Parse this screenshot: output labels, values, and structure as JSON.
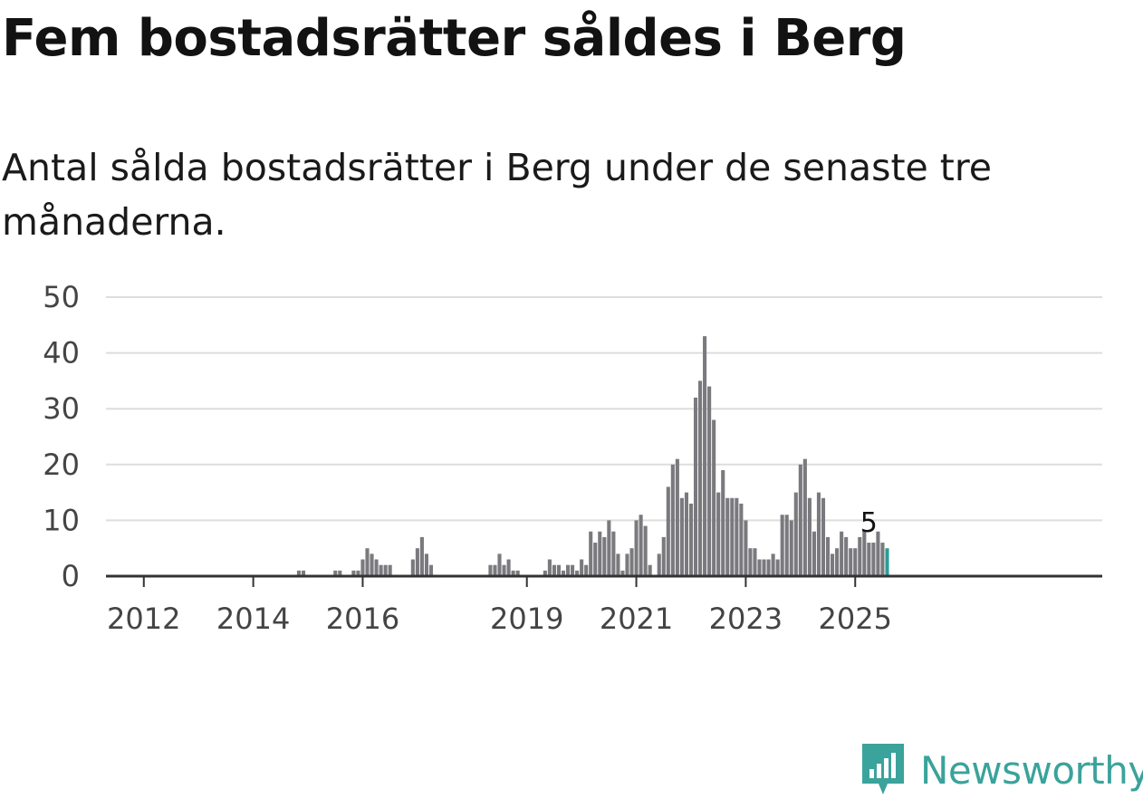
{
  "title": "Fem bostadsrätter såldes i Berg",
  "subtitle": "Antal sålda bostadsrätter i Berg under de senaste tre månaderna.",
  "logo": {
    "icon": "newsworthy-logo-icon",
    "text": "Newsworthy",
    "color": "#3aa39b"
  },
  "chart_data": {
    "type": "bar",
    "title": "",
    "xlabel": "",
    "ylabel": "",
    "ylim": [
      0,
      50
    ],
    "y_ticks": [
      "0",
      "10",
      "20",
      "30",
      "40",
      "50"
    ],
    "x_ticks": [
      {
        "label": "2012",
        "year": 2012
      },
      {
        "label": "2014",
        "year": 2014
      },
      {
        "label": "2016",
        "year": 2016
      },
      {
        "label": "2019",
        "year": 2019
      },
      {
        "label": "2021",
        "year": 2021
      },
      {
        "label": "2023",
        "year": 2023
      },
      {
        "label": "2025",
        "year": 2025
      }
    ],
    "grid": true,
    "bar_color": "#7a7a7e",
    "highlight_color": "#2a9d98",
    "start_month": "2011-05",
    "values": [
      0,
      0,
      0,
      0,
      0,
      0,
      0,
      0,
      0,
      0,
      0,
      0,
      0,
      0,
      0,
      0,
      0,
      0,
      0,
      0,
      0,
      0,
      0,
      0,
      0,
      0,
      0,
      0,
      0,
      0,
      0,
      0,
      0,
      0,
      0,
      0,
      0,
      0,
      0,
      0,
      0,
      0,
      1,
      1,
      0,
      0,
      0,
      0,
      0,
      0,
      1,
      1,
      0,
      0,
      1,
      1,
      3,
      5,
      4,
      3,
      2,
      2,
      2,
      0,
      0,
      0,
      0,
      3,
      5,
      7,
      4,
      2,
      0,
      0,
      0,
      0,
      0,
      0,
      0,
      0,
      0,
      0,
      0,
      0,
      2,
      2,
      4,
      2,
      3,
      1,
      1,
      0,
      0,
      0,
      0,
      0,
      1,
      3,
      2,
      2,
      1,
      2,
      2,
      1,
      3,
      2,
      8,
      6,
      8,
      7,
      10,
      8,
      4,
      1,
      4,
      5,
      10,
      11,
      9,
      2,
      0,
      4,
      7,
      16,
      20,
      21,
      14,
      15,
      13,
      32,
      35,
      43,
      34,
      28,
      15,
      19,
      14,
      14,
      14,
      13,
      10,
      5,
      5,
      3,
      3,
      3,
      4,
      3,
      11,
      11,
      10,
      15,
      20,
      21,
      14,
      8,
      15,
      14,
      7,
      4,
      5,
      8,
      7,
      5,
      5,
      7,
      8,
      6,
      6,
      8,
      6,
      5
    ],
    "highlight_last": true,
    "data_labels": [
      {
        "text": "5",
        "value": 5,
        "month": "2025-04"
      }
    ]
  }
}
